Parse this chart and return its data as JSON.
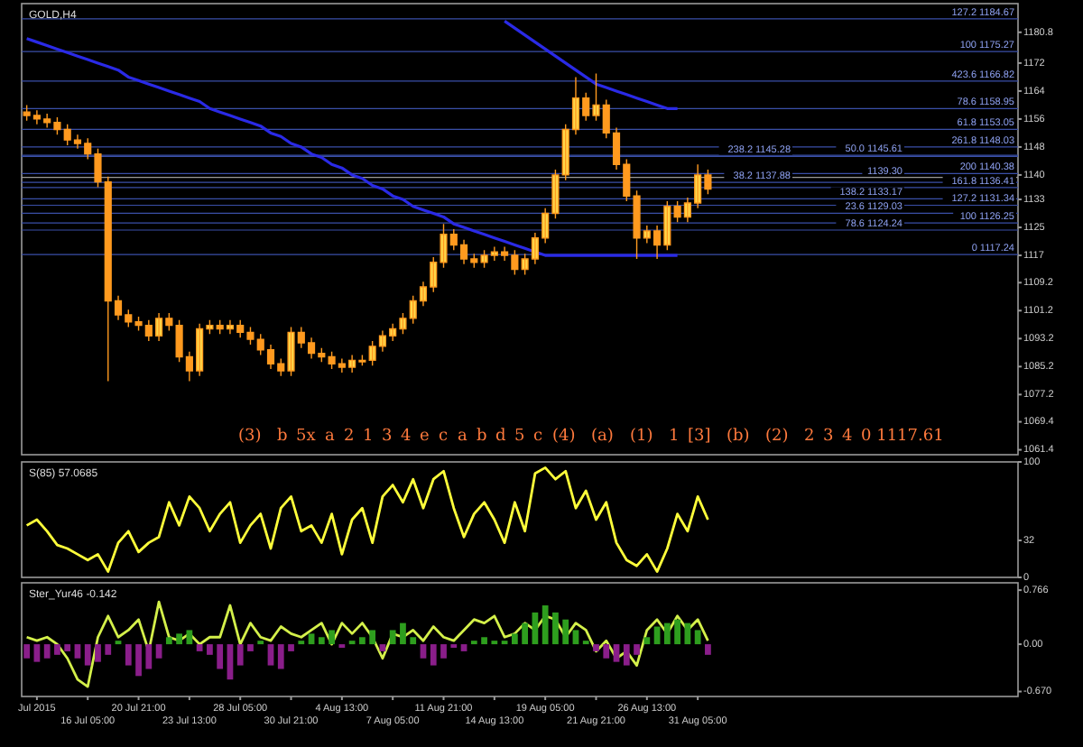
{
  "chart_data": [
    {
      "type": "candlestick",
      "title": "GOLD,H4",
      "color": "#ff9a1f",
      "ylim": [
        1060,
        1189
      ],
      "tick_labels": "y",
      "yticks": [
        1061.4,
        1069.4,
        1077.2,
        1085.2,
        1093.2,
        1101.2,
        1109.2,
        1117,
        1125,
        1133,
        1140,
        1148,
        1156,
        1164,
        1172,
        1180.8
      ],
      "categories": [
        null,
        null,
        null,
        null,
        null,
        null,
        null,
        null,
        null,
        null,
        null,
        null,
        null,
        null,
        null,
        null,
        null,
        null,
        null,
        null,
        null,
        null,
        null,
        null,
        null,
        null,
        null,
        null,
        null,
        null,
        null,
        null,
        null,
        null,
        null,
        null,
        null,
        null,
        null,
        null,
        null,
        null,
        null,
        null,
        null,
        null,
        null,
        null,
        null,
        null,
        null,
        null,
        null,
        null,
        null,
        null,
        null,
        null,
        null,
        null,
        null,
        null,
        null,
        null,
        null,
        null,
        null,
        null,
        null,
        null,
        null,
        null,
        null,
        null,
        null,
        null,
        null,
        null,
        null,
        null,
        null,
        null,
        null,
        null,
        null,
        null,
        null,
        null,
        null,
        null,
        null,
        null,
        null,
        null,
        null,
        null,
        null,
        null
      ],
      "ohlc": [
        [
          1158,
          1160,
          1155.5,
          1157
        ],
        [
          1157,
          1158.5,
          1154.5,
          1156
        ],
        [
          1156,
          1157.5,
          1153.5,
          1155
        ],
        [
          1155,
          1156.5,
          1151.5,
          1153
        ],
        [
          1153,
          1154.5,
          1148.5,
          1150
        ],
        [
          1150,
          1151.5,
          1147.5,
          1149
        ],
        [
          1149,
          1150.5,
          1144.5,
          1146
        ],
        [
          1146,
          1147.5,
          1136.5,
          1138
        ],
        [
          1138,
          1139.5,
          1081,
          1104
        ],
        [
          1104,
          1105.5,
          1098.5,
          1100
        ],
        [
          1100,
          1101.5,
          1096.5,
          1098
        ],
        [
          1098,
          1099.5,
          1095.5,
          1097
        ],
        [
          1097,
          1098.5,
          1092.5,
          1094
        ],
        [
          1094,
          1100.5,
          1092.5,
          1099
        ],
        [
          1099,
          1100.5,
          1095.5,
          1097
        ],
        [
          1097,
          1098.5,
          1086.5,
          1088
        ],
        [
          1088,
          1089.5,
          1081,
          1084
        ],
        [
          1084,
          1097.5,
          1082.5,
          1096
        ],
        [
          1096,
          1098.5,
          1094.5,
          1097
        ],
        [
          1097,
          1098.5,
          1094.5,
          1096
        ],
        [
          1096,
          1098.5,
          1094.5,
          1097
        ],
        [
          1097,
          1098.5,
          1093.5,
          1095
        ],
        [
          1095,
          1096.5,
          1091.5,
          1093
        ],
        [
          1093,
          1094.5,
          1088.5,
          1090
        ],
        [
          1090,
          1091.5,
          1084.5,
          1086
        ],
        [
          1086,
          1087.5,
          1082.5,
          1084
        ],
        [
          1084,
          1096.5,
          1082.5,
          1095
        ],
        [
          1095,
          1096.5,
          1090.5,
          1092
        ],
        [
          1092,
          1093.5,
          1087.5,
          1089
        ],
        [
          1089,
          1090.5,
          1086.5,
          1088
        ],
        [
          1088,
          1089.5,
          1084.5,
          1086
        ],
        [
          1086,
          1087.5,
          1083.5,
          1085
        ],
        [
          1085,
          1088.5,
          1083.5,
          1087
        ],
        [
          1087,
          1088.5,
          1085.5,
          1087
        ],
        [
          1087,
          1092.5,
          1085.5,
          1091
        ],
        [
          1091,
          1095.5,
          1089.5,
          1094
        ],
        [
          1094,
          1097.5,
          1092.5,
          1096
        ],
        [
          1096,
          1100.5,
          1094.5,
          1099
        ],
        [
          1099,
          1105.5,
          1097.5,
          1104
        ],
        [
          1104,
          1109.5,
          1102.5,
          1108
        ],
        [
          1108,
          1116.5,
          1106.5,
          1115
        ],
        [
          1115,
          1126,
          1113.5,
          1123
        ],
        [
          1123,
          1124.5,
          1118.5,
          1120
        ],
        [
          1120,
          1121.5,
          1114.5,
          1116
        ],
        [
          1116,
          1117.5,
          1113.5,
          1115
        ],
        [
          1115,
          1118.5,
          1113.5,
          1117
        ],
        [
          1117,
          1119.5,
          1115.5,
          1118
        ],
        [
          1118,
          1119.5,
          1115.5,
          1117
        ],
        [
          1117,
          1118.5,
          1111.5,
          1113
        ],
        [
          1113,
          1117.5,
          1111.5,
          1116
        ],
        [
          1116,
          1123.5,
          1114.5,
          1122
        ],
        [
          1122,
          1130.5,
          1120.5,
          1129
        ],
        [
          1129,
          1141.5,
          1127.5,
          1140
        ],
        [
          1140,
          1154.5,
          1138.5,
          1153
        ],
        [
          1153,
          1168,
          1151.5,
          1162
        ],
        [
          1162,
          1163.5,
          1155.5,
          1157
        ],
        [
          1157,
          1169,
          1155.5,
          1160
        ],
        [
          1160,
          1161.5,
          1150.5,
          1152
        ],
        [
          1152,
          1153.5,
          1141.5,
          1143
        ],
        [
          1143,
          1144.5,
          1132.5,
          1134
        ],
        [
          1134,
          1135.5,
          1116,
          1122
        ],
        [
          1122,
          1125.5,
          1120.5,
          1124
        ],
        [
          1124,
          1125.5,
          1116,
          1120
        ],
        [
          1120,
          1132.5,
          1118.5,
          1131
        ],
        [
          1131,
          1132.5,
          1126.5,
          1128
        ],
        [
          1128,
          1133.5,
          1126.5,
          1132
        ],
        [
          1132,
          1143,
          1130.5,
          1140
        ],
        [
          1140,
          1141.5,
          1134.5,
          1136
        ],
        null,
        null,
        null,
        null,
        null,
        null,
        null,
        null,
        null,
        null,
        null,
        null,
        null,
        null,
        null,
        null,
        null,
        null,
        null,
        null,
        null,
        null,
        null,
        null,
        null,
        null,
        null,
        null,
        null,
        null
      ],
      "series": [
        {
          "type": "line",
          "color": "#2a2ae6",
          "values": [
            1179,
            1178,
            1177,
            1176,
            1175,
            1174,
            1173,
            1172,
            1171,
            1170,
            1168,
            1167,
            1166,
            1165,
            1164,
            1163,
            1162,
            1161,
            1159,
            1158,
            1157,
            1156,
            1155,
            1154,
            1152,
            1151,
            1149,
            1148,
            1146,
            1145,
            1143,
            1142,
            1140,
            1139,
            1137,
            1136,
            1134,
            1133,
            1131,
            1130,
            1129,
            1128,
            1126,
            1125,
            1124,
            1123,
            1122,
            1121,
            1120,
            1119,
            1118,
            1117,
            1117,
            1117,
            1117,
            1117,
            1117,
            1117,
            1117,
            1117,
            1117,
            1117,
            1117,
            1117,
            1117,
            null,
            null,
            null,
            null,
            null,
            null,
            null,
            null,
            null,
            null,
            null,
            null,
            null,
            null,
            null,
            null,
            null,
            null,
            null,
            null,
            null,
            null,
            null,
            null,
            null,
            null,
            null,
            null,
            null,
            null,
            null,
            null,
            null
          ]
        },
        {
          "type": "line",
          "color": "#2a2ae6",
          "values": [
            null,
            null,
            null,
            null,
            null,
            null,
            null,
            null,
            null,
            null,
            null,
            null,
            null,
            null,
            null,
            null,
            null,
            null,
            null,
            null,
            null,
            null,
            null,
            null,
            null,
            null,
            null,
            null,
            null,
            null,
            null,
            null,
            null,
            null,
            null,
            null,
            null,
            null,
            null,
            null,
            null,
            null,
            null,
            null,
            null,
            null,
            null,
            1184,
            1182,
            1180,
            1178,
            1176,
            1174,
            1172,
            1170,
            1168,
            1166,
            1165,
            1164,
            1163,
            1162,
            1161,
            1160,
            1159,
            1159,
            null,
            null,
            null,
            null,
            null,
            null,
            null,
            null,
            null,
            null,
            null,
            null,
            null,
            null,
            null,
            null,
            null,
            null,
            null,
            null,
            null,
            null,
            null,
            null,
            null,
            null,
            null,
            null,
            null,
            null,
            null,
            null,
            null
          ]
        }
      ],
      "ref_lines": [
        {
          "axis": "y",
          "value": 1139.3,
          "label": "1139.30",
          "color": "#9a9a9a"
        },
        {
          "axis": "y",
          "value": 1184.67,
          "label": "127.2 1184.67",
          "color": "#3a4fa8"
        },
        {
          "axis": "y",
          "value": 1175.27,
          "label": "100 1175.27",
          "color": "#3a4fa8"
        },
        {
          "axis": "y",
          "value": 1166.82,
          "label": "423.6 1166.82",
          "color": "#3a4fa8"
        },
        {
          "axis": "y",
          "value": 1158.95,
          "label": "78.6 1158.95",
          "color": "#3a4fa8"
        },
        {
          "axis": "y",
          "value": 1153.05,
          "label": "61.8 1153.05",
          "color": "#3a4fa8"
        },
        {
          "axis": "y",
          "value": 1148.03,
          "label": "261.8 1148.03",
          "color": "#3a4fa8"
        },
        {
          "axis": "y",
          "value": 1145.61,
          "label": "50.0 1145.61",
          "color": "#3a4fa8"
        },
        {
          "axis": "y",
          "value": 1145.28,
          "label": "238.2 1145.28",
          "color": "#3a4fa8"
        },
        {
          "axis": "y",
          "value": 1140.38,
          "label": "200 1140.38",
          "color": "#3a4fa8"
        },
        {
          "axis": "y",
          "value": 1137.88,
          "label": "38.2 1137.88",
          "color": "#3a4fa8"
        },
        {
          "axis": "y",
          "value": 1136.41,
          "label": "161.8 1136.41",
          "color": "#3a4fa8"
        },
        {
          "axis": "y",
          "value": 1133.17,
          "label": "138.2 1133.17",
          "color": "#3a4fa8"
        },
        {
          "axis": "y",
          "value": 1131.34,
          "label": "127.2 1131.34",
          "color": "#3a4fa8"
        },
        {
          "axis": "y",
          "value": 1129.03,
          "label": "23.6 1129.03",
          "color": "#3a4fa8"
        },
        {
          "axis": "y",
          "value": 1126.25,
          "label": "100 1126.25",
          "color": "#3a4fa8"
        },
        {
          "axis": "y",
          "value": 1124.24,
          "label": "78.6 1124.24",
          "color": "#3a4fa8"
        },
        {
          "axis": "y",
          "value": 1117.24,
          "label": "0 1117.24",
          "color": "#3a4fa8"
        }
      ],
      "annotations": [
        "(3)",
        "b",
        "5x",
        "a",
        "2",
        "1",
        "3",
        "4",
        "e",
        "c",
        "a",
        "b",
        "d",
        "5",
        "c",
        "(4)",
        "(a)",
        "(1)",
        "1",
        "[3]",
        "(b)",
        "(2)",
        "2",
        "3",
        "4",
        "0 1117.61"
      ]
    },
    {
      "type": "line",
      "title": "S(85) 57.0685",
      "ylim": [
        0,
        100
      ],
      "yticks": [
        0,
        32,
        100
      ],
      "tick_labels": "y",
      "categories": [
        null,
        null,
        null,
        null,
        null,
        null,
        null,
        null,
        null,
        null,
        null,
        null,
        null,
        null,
        null,
        null,
        null,
        null,
        null,
        null,
        null,
        null,
        null,
        null,
        null,
        null,
        null,
        null,
        null,
        null,
        null,
        null,
        null,
        null,
        null,
        null,
        null,
        null,
        null,
        null,
        null,
        null,
        null,
        null,
        null,
        null,
        null,
        null,
        null,
        null,
        null,
        null,
        null,
        null,
        null,
        null,
        null,
        null,
        null,
        null,
        null,
        null,
        null,
        null,
        null,
        null,
        null,
        null,
        null,
        null,
        null,
        null,
        null,
        null,
        null,
        null,
        null,
        null,
        null,
        null,
        null,
        null,
        null,
        null,
        null,
        null,
        null,
        null,
        null,
        null,
        null,
        null,
        null,
        null,
        null,
        null,
        null,
        null
      ],
      "series": [
        {
          "color": "#ffff3a",
          "values": [
            45,
            50,
            40,
            28,
            25,
            20,
            15,
            20,
            5,
            30,
            40,
            22,
            30,
            35,
            65,
            45,
            70,
            60,
            40,
            55,
            65,
            30,
            45,
            55,
            25,
            60,
            70,
            40,
            45,
            30,
            55,
            20,
            50,
            60,
            30,
            70,
            80,
            65,
            85,
            60,
            85,
            92,
            60,
            35,
            55,
            65,
            50,
            30,
            65,
            40,
            90,
            95,
            85,
            92,
            60,
            75,
            50,
            65,
            30,
            15,
            10,
            20,
            5,
            25,
            55,
            40,
            70,
            50,
            null,
            null,
            null,
            null,
            null,
            null,
            null,
            null,
            null,
            null,
            null,
            null,
            null,
            null,
            null,
            null,
            null,
            null,
            null,
            null,
            null,
            null,
            null,
            null,
            null,
            null,
            null,
            null,
            null,
            null
          ]
        }
      ]
    },
    {
      "type": "bar",
      "title": "Ster_Yur46 -0.142",
      "ylim": [
        -0.74,
        0.87
      ],
      "yticks": [
        {
          "value": -0.67,
          "label": "-0.670"
        },
        {
          "value": 0,
          "label": "0.00"
        },
        0.766
      ],
      "categories": [
        null,
        "Jul 2015",
        null,
        null,
        null,
        null,
        "16 Jul 05:00",
        null,
        null,
        null,
        null,
        "20 Jul 21:00",
        null,
        null,
        null,
        null,
        "23 Jul 13:00",
        null,
        null,
        null,
        null,
        "28 Jul 05:00",
        null,
        null,
        null,
        null,
        "30 Jul 21:00",
        null,
        null,
        null,
        null,
        "4 Aug 13:00",
        null,
        null,
        null,
        null,
        "7 Aug 05:00",
        null,
        null,
        null,
        null,
        "11 Aug 21:00",
        null,
        null,
        null,
        null,
        "14 Aug 13:00",
        null,
        null,
        null,
        null,
        "19 Aug 05:00",
        null,
        null,
        null,
        null,
        "21 Aug 21:00",
        null,
        null,
        null,
        null,
        "26 Aug 13:00",
        null,
        null,
        null,
        null,
        "31 Aug 05:00",
        null,
        null,
        null,
        null,
        null,
        null,
        null,
        null,
        null,
        null,
        null,
        null,
        null,
        null,
        null,
        null,
        null,
        null,
        null,
        null,
        null,
        null,
        null,
        null,
        null,
        null,
        null,
        null,
        null,
        null,
        null
      ],
      "series": [
        {
          "color": "#2e9e1e",
          "values": [
            null,
            null,
            null,
            null,
            null,
            null,
            null,
            null,
            null,
            0.05,
            null,
            null,
            null,
            null,
            0.1,
            0.15,
            0.2,
            null,
            null,
            null,
            null,
            null,
            null,
            0.05,
            null,
            null,
            null,
            0.05,
            0.15,
            0.1,
            0.2,
            null,
            0.05,
            0.1,
            0.2,
            null,
            0.2,
            0.3,
            0.1,
            null,
            null,
            null,
            null,
            null,
            0.05,
            0.1,
            0.05,
            0.05,
            0.15,
            0.3,
            0.45,
            0.55,
            0.45,
            0.35,
            0.2,
            0.05,
            null,
            null,
            null,
            null,
            null,
            0.1,
            0.25,
            0.3,
            0.35,
            0.3,
            0.2,
            null,
            null,
            null,
            null,
            null,
            null,
            null,
            null,
            null,
            null,
            null,
            null,
            null,
            null,
            null,
            null,
            null,
            null,
            null,
            null,
            null,
            null,
            null,
            null,
            null,
            null,
            null,
            null,
            null,
            null,
            null
          ]
        },
        {
          "color": "#8a1e8a",
          "values": [
            -0.2,
            -0.25,
            -0.2,
            -0.15,
            -0.1,
            -0.2,
            -0.3,
            -0.25,
            -0.15,
            null,
            -0.3,
            -0.45,
            -0.35,
            -0.2,
            null,
            null,
            null,
            -0.1,
            -0.15,
            -0.35,
            -0.5,
            -0.3,
            -0.1,
            null,
            -0.3,
            -0.35,
            -0.1,
            null,
            null,
            null,
            null,
            -0.05,
            null,
            null,
            null,
            -0.1,
            null,
            null,
            null,
            -0.2,
            -0.3,
            -0.2,
            -0.05,
            -0.1,
            null,
            null,
            null,
            null,
            null,
            null,
            null,
            null,
            null,
            null,
            null,
            null,
            -0.1,
            -0.2,
            -0.25,
            -0.3,
            -0.15,
            null,
            null,
            null,
            null,
            null,
            null,
            -0.15,
            null,
            null,
            null,
            null,
            null,
            null,
            null,
            null,
            null,
            null,
            null,
            null,
            null,
            null,
            null,
            null,
            null,
            null,
            null,
            null,
            null,
            null,
            null,
            null,
            null,
            null,
            null,
            null,
            null,
            null
          ]
        },
        {
          "type": "line",
          "color": "#d4f04a",
          "values": [
            0.1,
            0.05,
            0.1,
            0,
            -0.2,
            -0.5,
            -0.6,
            0.1,
            0.4,
            0.1,
            0.2,
            0.35,
            -0.1,
            0.6,
            0.1,
            0.05,
            0.15,
            0,
            0.1,
            0.1,
            0.55,
            0,
            0.3,
            0.1,
            0.05,
            0.25,
            0.15,
            0.1,
            0.2,
            0.3,
            0,
            0.3,
            0.15,
            0.3,
            0.1,
            -0.2,
            0.15,
            0.1,
            0.2,
            0.05,
            0.25,
            0.1,
            0.05,
            0.2,
            0.35,
            0.3,
            0.4,
            0.1,
            0.15,
            0.3,
            0.2,
            0.4,
            0.35,
            0.1,
            0.3,
            0.2,
            -0.1,
            0.05,
            -0.2,
            -0.1,
            -0.3,
            0.2,
            0.35,
            0.15,
            0.4,
            0.2,
            0.35,
            0.05,
            null,
            null,
            null,
            null,
            null,
            null,
            null,
            null,
            null,
            null,
            null,
            null,
            null,
            null,
            null,
            null,
            null,
            null,
            null,
            null,
            null,
            null,
            null,
            null,
            null,
            null,
            null,
            null,
            null,
            null
          ]
        }
      ]
    }
  ]
}
